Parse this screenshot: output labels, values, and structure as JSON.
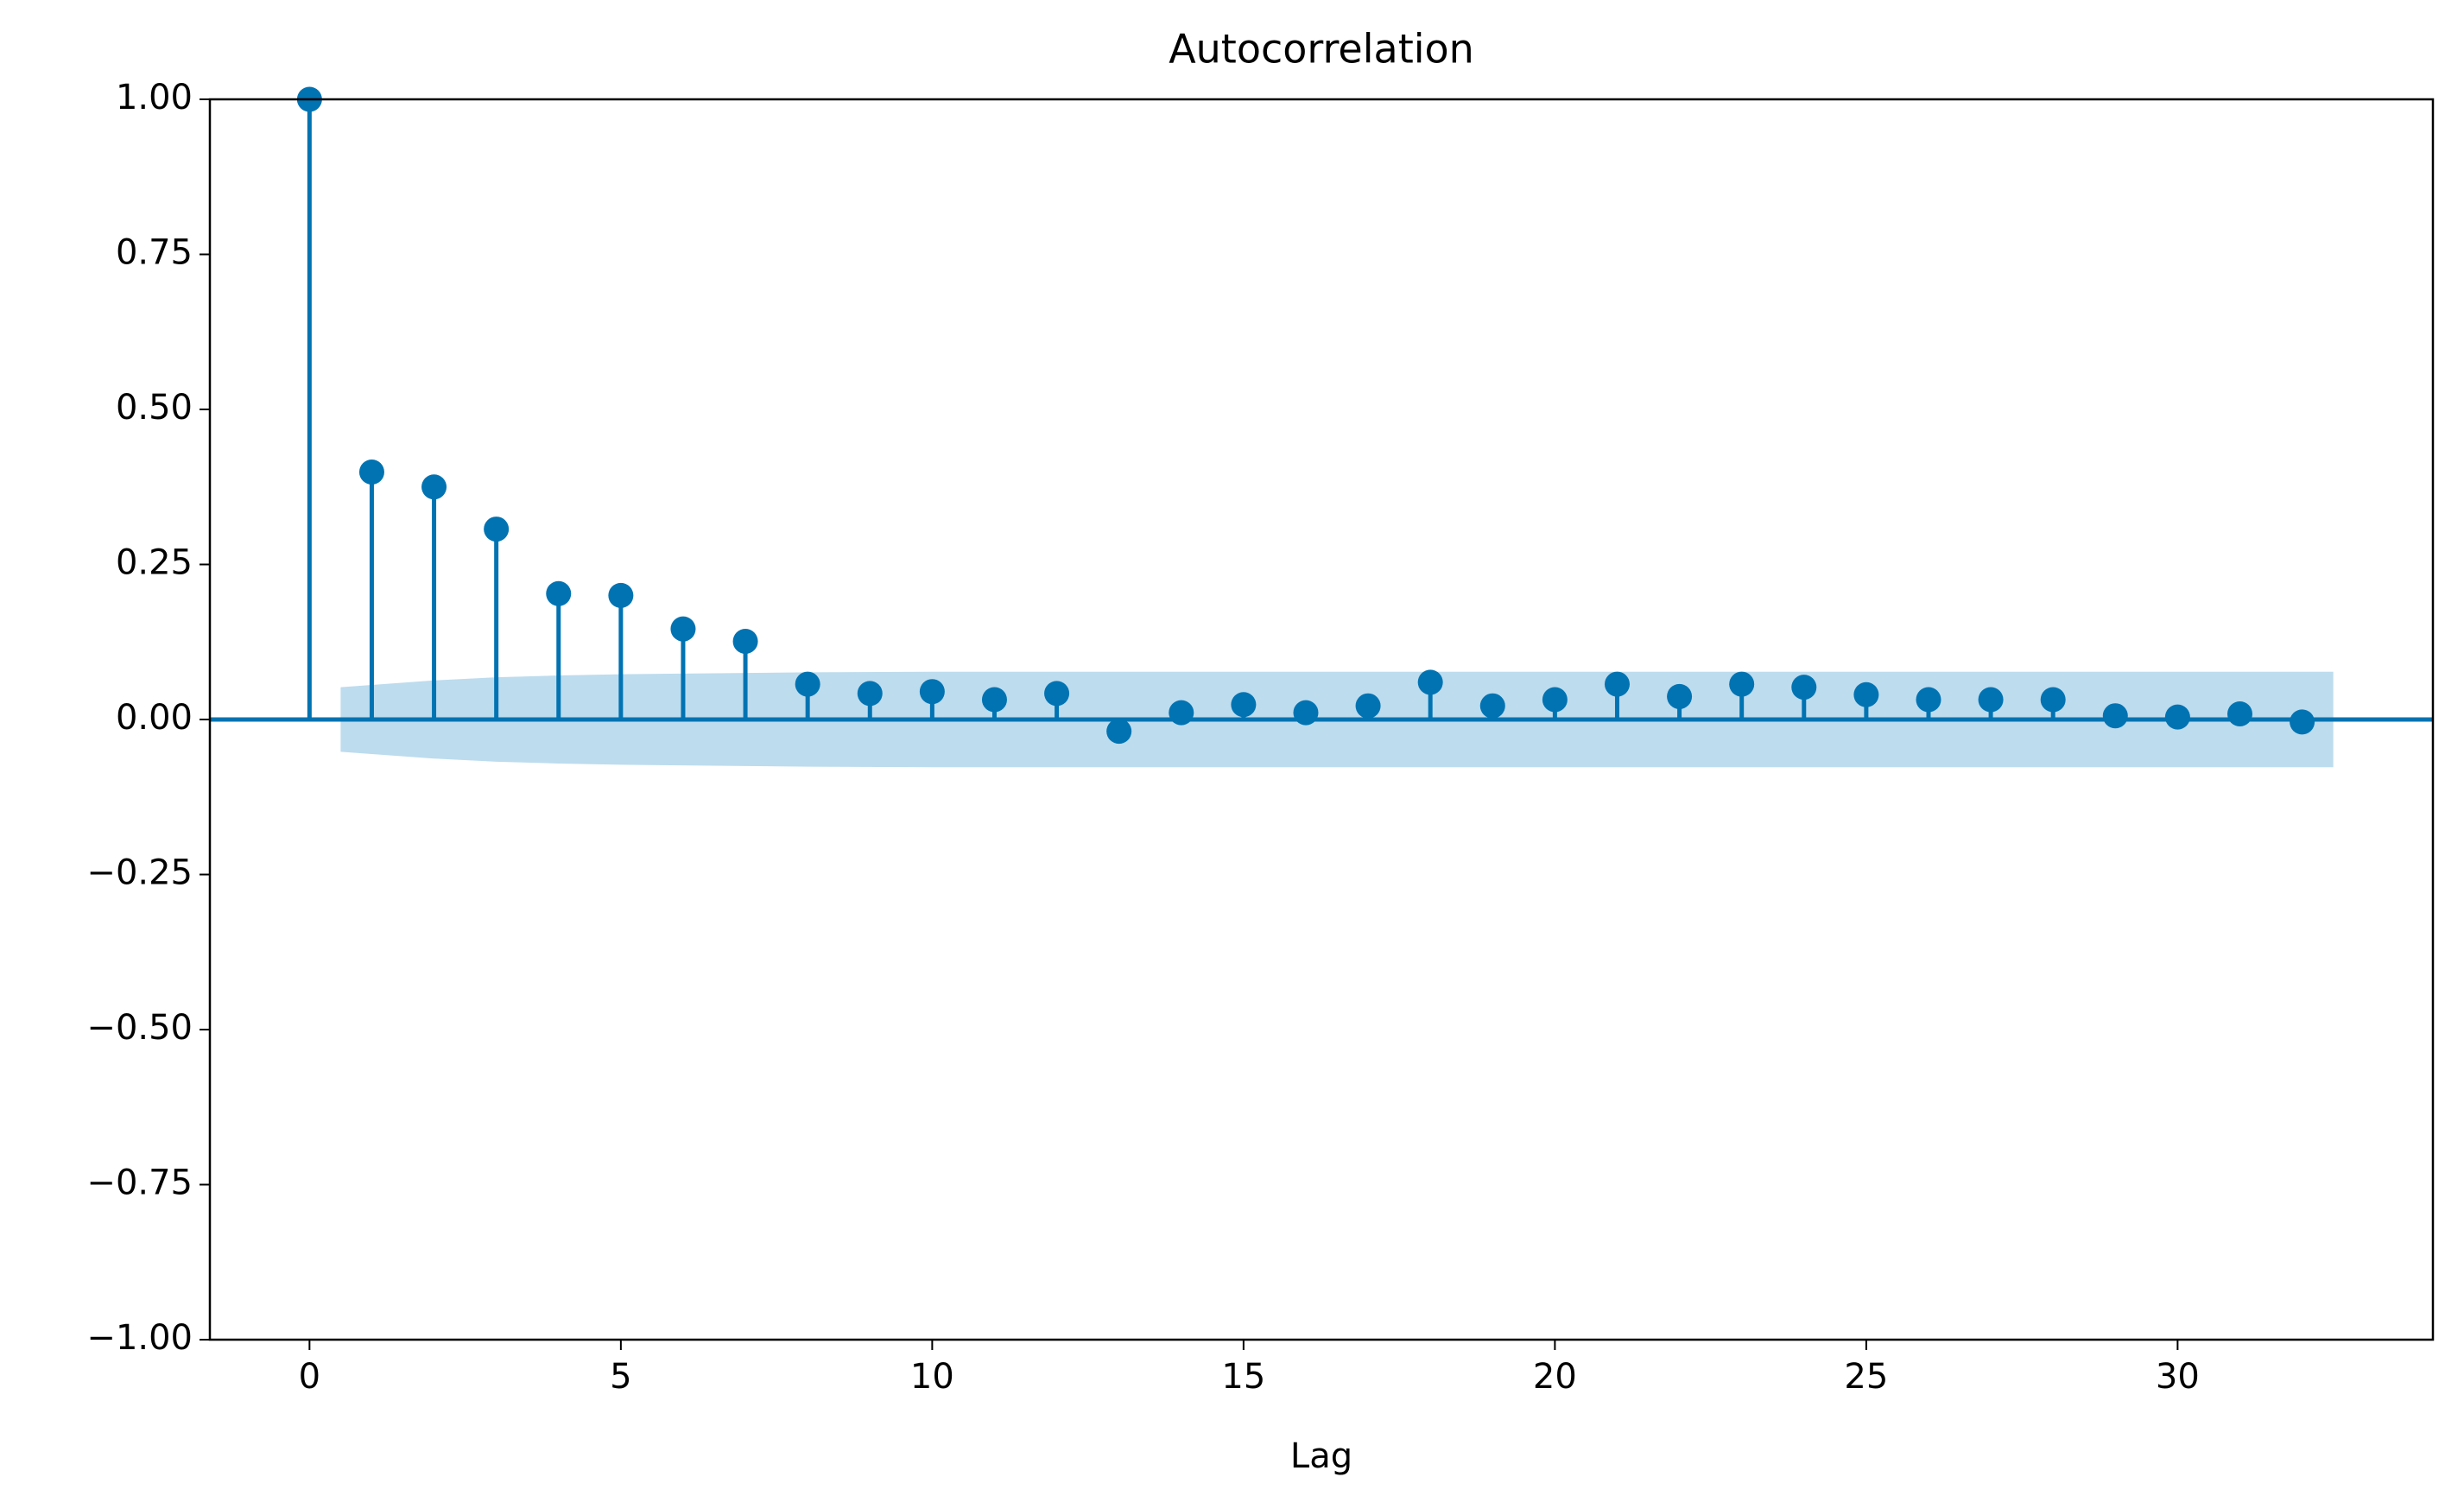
{
  "chart_data": {
    "type": "stem",
    "title": "Autocorrelation",
    "x_label": "Lag",
    "x": [
      0,
      1,
      2,
      3,
      4,
      5,
      6,
      7,
      8,
      9,
      10,
      11,
      12,
      13,
      14,
      15,
      16,
      17,
      18,
      19,
      20,
      21,
      22,
      23,
      24,
      25,
      26,
      27,
      28,
      29,
      30,
      31,
      32
    ],
    "values": [
      1.0,
      0.399,
      0.375,
      0.307,
      0.203,
      0.2,
      0.146,
      0.126,
      0.057,
      0.042,
      0.045,
      0.032,
      0.042,
      -0.019,
      0.011,
      0.024,
      0.011,
      0.022,
      0.06,
      0.022,
      0.032,
      0.057,
      0.037,
      0.057,
      0.052,
      0.04,
      0.032,
      0.032,
      0.032,
      0.006,
      0.004,
      0.009,
      -0.004
    ],
    "color": "#0173b2",
    "band": {
      "x": [
        0.5,
        2,
        3,
        4,
        5,
        6,
        7,
        8,
        10,
        15,
        20,
        25,
        32.5
      ],
      "upper": [
        0.052,
        0.063,
        0.068,
        0.071,
        0.073,
        0.074,
        0.075,
        0.076,
        0.077,
        0.077,
        0.077,
        0.077,
        0.077
      ],
      "lower": [
        -0.052,
        -0.063,
        -0.068,
        -0.071,
        -0.073,
        -0.074,
        -0.075,
        -0.076,
        -0.077,
        -0.077,
        -0.077,
        -0.077,
        -0.077
      ],
      "color": "#bddcee"
    },
    "hline": 0,
    "xlim": [
      -1.6,
      34.1
    ],
    "xticks": [
      0,
      5,
      10,
      15,
      20,
      25,
      30
    ],
    "ylim": [
      -1,
      1
    ],
    "yticks": [
      {
        "value": -1,
        "label": "−1.00"
      },
      {
        "value": -0.75,
        "label": "−0.75"
      },
      {
        "value": -0.5,
        "label": "−0.50"
      },
      {
        "value": -0.25,
        "label": "−0.25"
      },
      {
        "value": 0,
        "label": "0.00"
      },
      {
        "value": 0.25,
        "label": "0.25"
      },
      {
        "value": 0.5,
        "label": "0.50"
      },
      {
        "value": 0.75,
        "label": "0.75"
      },
      {
        "value": 1,
        "label": "1.00"
      }
    ]
  }
}
